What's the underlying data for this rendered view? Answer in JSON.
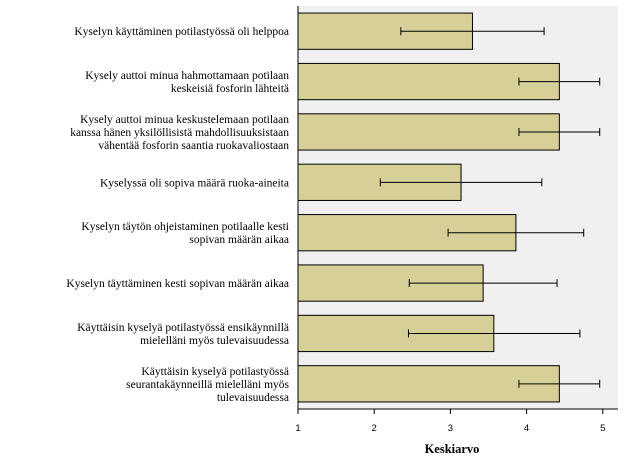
{
  "chart_data": {
    "type": "bar",
    "orientation": "horizontal",
    "title": "",
    "xlabel": "Keskiarvo",
    "ylabel": "",
    "xlim": [
      1,
      5.2
    ],
    "xticks": [
      "1",
      "2",
      "3",
      "4",
      "5"
    ],
    "grid": false,
    "legend": "none",
    "colors": {
      "bar_fill": "#d6cf98",
      "bar_stroke": "#000000",
      "plot_background": "#f0f0f0",
      "error_bar": "#000000"
    },
    "categories": [
      [
        "Kyselyn käyttäminen potilastyössä oli helppoa"
      ],
      [
        "Kysely auttoi minua hahmottamaan potilaan",
        "keskeisiä fosforin lähteitä"
      ],
      [
        "Kysely auttoi minua keskustelemaan potilaan",
        "kanssa hänen yksilöllisistä mahdollisuuksistaan",
        "vähentää fosforin saantia ruokavaliostaan"
      ],
      [
        "Kyselyssä oli sopiva määrä ruoka-aineita"
      ],
      [
        "Kyselyn täytön ohjeistaminen potilaalle kesti",
        "sopivan määrän aikaa"
      ],
      [
        "Kyselyn täyttäminen kesti sopivan määrän aikaa"
      ],
      [
        "Käyttäisin kyselyä potilastyössä ensikäynnillä",
        "mielelläni myös tulevaisuudessa"
      ],
      [
        "Käyttäisin kyselyä potilastyössä",
        "seurantakäynneillä mielelläni myös",
        "tulevaisuudessa"
      ]
    ],
    "values": [
      3.29,
      4.43,
      4.43,
      3.14,
      3.86,
      3.43,
      3.57,
      4.43
    ],
    "error_low": [
      2.35,
      3.9,
      3.9,
      2.08,
      2.97,
      2.46,
      2.45,
      3.9
    ],
    "error_high": [
      4.23,
      4.96,
      4.96,
      4.2,
      4.75,
      4.4,
      4.7,
      4.96
    ]
  }
}
